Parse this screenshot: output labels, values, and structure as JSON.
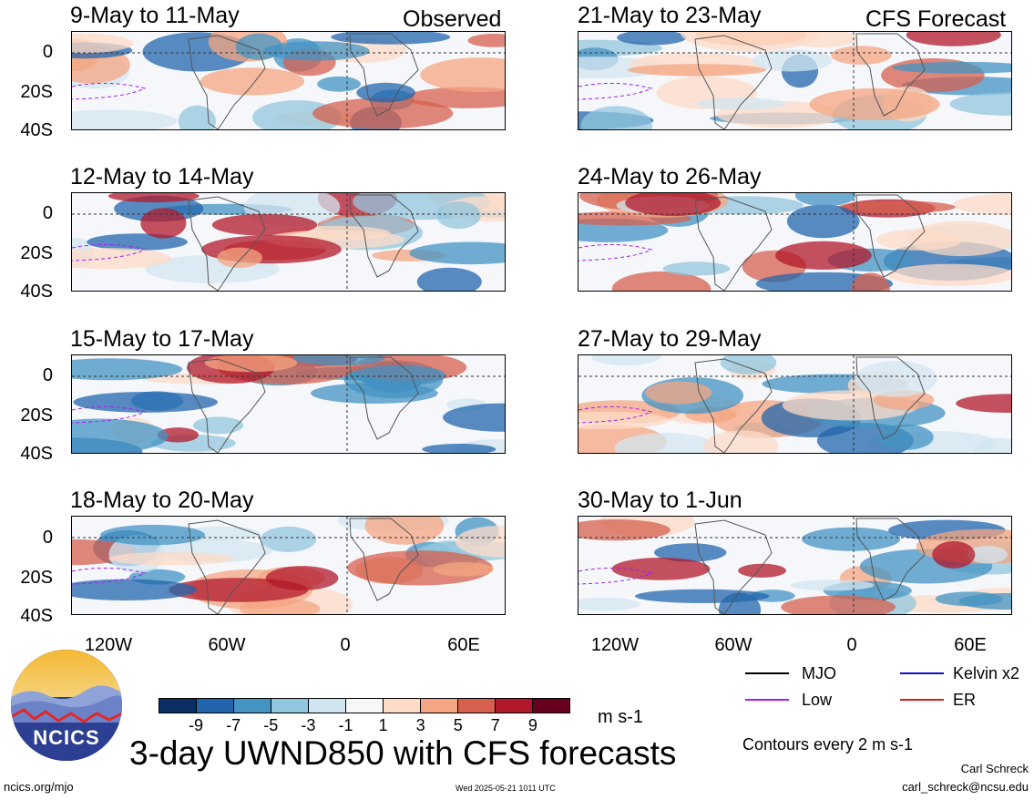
{
  "column_labels": {
    "observed": "Observed",
    "forecast": "CFS Forecast"
  },
  "panels": [
    {
      "title": "9-May to 11-May"
    },
    {
      "title": "12-May to 14-May"
    },
    {
      "title": "15-May to 17-May"
    },
    {
      "title": "18-May to 20-May"
    },
    {
      "title": "21-May to 23-May"
    },
    {
      "title": "24-May to 26-May"
    },
    {
      "title": "27-May to 29-May"
    },
    {
      "title": "30-May to 1-Jun"
    }
  ],
  "lat_labels": [
    "0",
    "20S",
    "40S"
  ],
  "lon_labels": [
    "120W",
    "60W",
    "0",
    "60E"
  ],
  "contour_legend": [
    {
      "label": "MJO",
      "color": "#000000"
    },
    {
      "label": "Kelvin x2",
      "color": "#1010d0"
    },
    {
      "label": "Low",
      "color": "#a020f0"
    },
    {
      "label": "ER",
      "color": "#d02020"
    }
  ],
  "colorbar": {
    "tick_labels": [
      "-9",
      "-7",
      "-5",
      "-3",
      "-1",
      "1",
      "3",
      "5",
      "7",
      "9"
    ],
    "colors": [
      "#0b2f64",
      "#2166ac",
      "#4393c3",
      "#92c5de",
      "#d1e5f0",
      "#f7f7f7",
      "#fddbc7",
      "#f4a582",
      "#d6604d",
      "#b2182b",
      "#67001f"
    ],
    "units": "m s-1"
  },
  "contour_note": "Contours every 2 m s-1",
  "main_title": "3-day UWND850 with CFS forecasts",
  "logo_text": "NCICS",
  "footer": {
    "url": "ncics.org/mjo",
    "timestamp": "Wed 2025-05-21 1011 UTC",
    "author": "Carl Schreck",
    "email": "carl_schreck@ncsu.edu"
  }
}
